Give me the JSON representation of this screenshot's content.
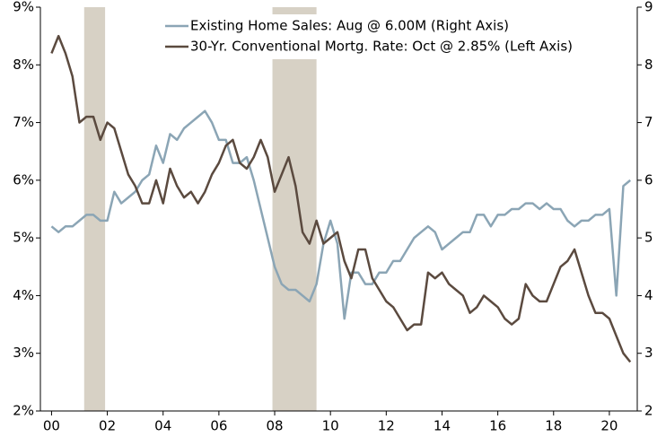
{
  "chart_data": {
    "type": "line",
    "x": [
      2000,
      2000.25,
      2000.5,
      2000.75,
      2001,
      2001.25,
      2001.5,
      2001.75,
      2002,
      2002.25,
      2002.5,
      2002.75,
      2003,
      2003.25,
      2003.5,
      2003.75,
      2004,
      2004.25,
      2004.5,
      2004.75,
      2005,
      2005.25,
      2005.5,
      2005.75,
      2006,
      2006.25,
      2006.5,
      2006.75,
      2007,
      2007.25,
      2007.5,
      2007.75,
      2008,
      2008.25,
      2008.5,
      2008.75,
      2009,
      2009.25,
      2009.5,
      2009.75,
      2010,
      2010.25,
      2010.5,
      2010.75,
      2011,
      2011.25,
      2011.5,
      2011.75,
      2012,
      2012.25,
      2012.5,
      2012.75,
      2013,
      2013.25,
      2013.5,
      2013.75,
      2014,
      2014.25,
      2014.5,
      2014.75,
      2015,
      2015.25,
      2015.5,
      2015.75,
      2016,
      2016.25,
      2016.5,
      2016.75,
      2017,
      2017.25,
      2017.5,
      2017.75,
      2018,
      2018.25,
      2018.5,
      2018.75,
      2019,
      2019.25,
      2019.5,
      2019.75,
      2020,
      2020.25,
      2020.5,
      2020.75
    ],
    "series": [
      {
        "name": "Existing Home Sales: Aug @ 6.00M (Right Axis)",
        "color": "#8ba5b5",
        "axis": "y2",
        "values": [
          5.2,
          5.1,
          5.2,
          5.2,
          5.3,
          5.4,
          5.4,
          5.3,
          5.3,
          5.8,
          5.6,
          5.7,
          5.8,
          6.0,
          6.1,
          6.6,
          6.3,
          6.8,
          6.7,
          6.9,
          7.0,
          7.1,
          7.2,
          7.0,
          6.7,
          6.7,
          6.3,
          6.3,
          6.4,
          6.0,
          5.5,
          5.0,
          4.5,
          4.2,
          4.1,
          4.1,
          4.0,
          3.9,
          4.2,
          4.9,
          5.3,
          4.9,
          3.6,
          4.4,
          4.4,
          4.2,
          4.2,
          4.4,
          4.4,
          4.6,
          4.6,
          4.8,
          5.0,
          5.1,
          5.2,
          5.1,
          4.8,
          4.9,
          5.0,
          5.1,
          5.1,
          5.4,
          5.4,
          5.2,
          5.4,
          5.4,
          5.5,
          5.5,
          5.6,
          5.6,
          5.5,
          5.6,
          5.5,
          5.5,
          5.3,
          5.2,
          5.3,
          5.3,
          5.4,
          5.4,
          5.5,
          4.0,
          5.9,
          6.0
        ]
      },
      {
        "name": "30-Yr. Conventional Mortg. Rate: Oct @ 2.85% (Left Axis)",
        "color": "#5b4a3f",
        "values": [
          8.2,
          8.5,
          8.2,
          7.8,
          7.0,
          7.1,
          7.1,
          6.7,
          7.0,
          6.9,
          6.5,
          6.1,
          5.9,
          5.6,
          5.6,
          6.0,
          5.6,
          6.2,
          5.9,
          5.7,
          5.8,
          5.6,
          5.8,
          6.1,
          6.3,
          6.6,
          6.7,
          6.3,
          6.2,
          6.4,
          6.7,
          6.4,
          5.8,
          6.1,
          6.4,
          5.9,
          5.1,
          4.9,
          5.3,
          4.9,
          5.0,
          5.1,
          4.6,
          4.3,
          4.8,
          4.8,
          4.3,
          4.1,
          3.9,
          3.8,
          3.6,
          3.4,
          3.5,
          3.5,
          4.4,
          4.3,
          4.4,
          4.2,
          4.1,
          4.0,
          3.7,
          3.8,
          4.0,
          3.9,
          3.8,
          3.6,
          3.5,
          3.6,
          4.2,
          4.0,
          3.9,
          3.9,
          4.2,
          4.5,
          4.6,
          4.8,
          4.4,
          4.0,
          3.7,
          3.7,
          3.6,
          3.3,
          3.0,
          2.85
        ]
      }
    ],
    "recessions": [
      [
        2001.17,
        2001.92
      ],
      [
        2007.92,
        2009.5
      ]
    ],
    "recession_color": "#d7d1c5",
    "xlim": [
      1999.6,
      2021.0
    ],
    "xticks": [
      {
        "value": 2000,
        "label": "00"
      },
      {
        "value": 2002,
        "label": "02"
      },
      {
        "value": 2004,
        "label": "04"
      },
      {
        "value": 2006,
        "label": "06"
      },
      {
        "value": 2008,
        "label": "08"
      },
      {
        "value": 2010,
        "label": "10"
      },
      {
        "value": 2012,
        "label": "12"
      },
      {
        "value": 2014,
        "label": "14"
      },
      {
        "value": 2016,
        "label": "16"
      },
      {
        "value": 2018,
        "label": "18"
      },
      {
        "value": 2020,
        "label": "20"
      }
    ],
    "ylim": [
      2,
      9
    ],
    "yticks": [
      {
        "value": 2,
        "label": "2%"
      },
      {
        "value": 3,
        "label": "3%"
      },
      {
        "value": 4,
        "label": "4%"
      },
      {
        "value": 5,
        "label": "5%"
      },
      {
        "value": 6,
        "label": "6%"
      },
      {
        "value": 7,
        "label": "7%"
      },
      {
        "value": 8,
        "label": "8%"
      },
      {
        "value": 9,
        "label": "9%"
      }
    ],
    "y2lim": [
      2,
      9
    ],
    "y2ticks": [
      2,
      3,
      4,
      5,
      6,
      7,
      8,
      9
    ],
    "legend": "upper right"
  }
}
